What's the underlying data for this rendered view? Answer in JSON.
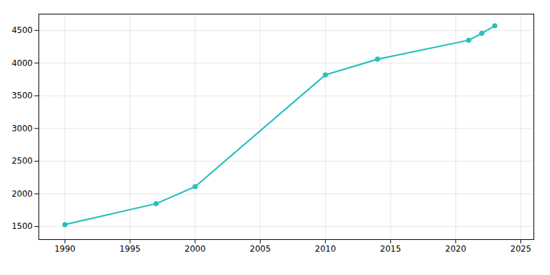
{
  "chart_data": {
    "type": "line",
    "x": [
      1990,
      1997,
      2000,
      2010,
      2014,
      2021,
      2022,
      2023
    ],
    "values": [
      1530,
      1850,
      2110,
      3820,
      4060,
      4350,
      4455,
      4570
    ],
    "color": "#2abfbf",
    "marker": "circle",
    "xlim": [
      1988,
      2026
    ],
    "ylim": [
      1300,
      4750
    ],
    "xticks": [
      1990,
      1995,
      2000,
      2005,
      2010,
      2015,
      2020,
      2025
    ],
    "yticks": [
      1500,
      2000,
      2500,
      3000,
      3500,
      4000,
      4500
    ],
    "grid": true
  }
}
